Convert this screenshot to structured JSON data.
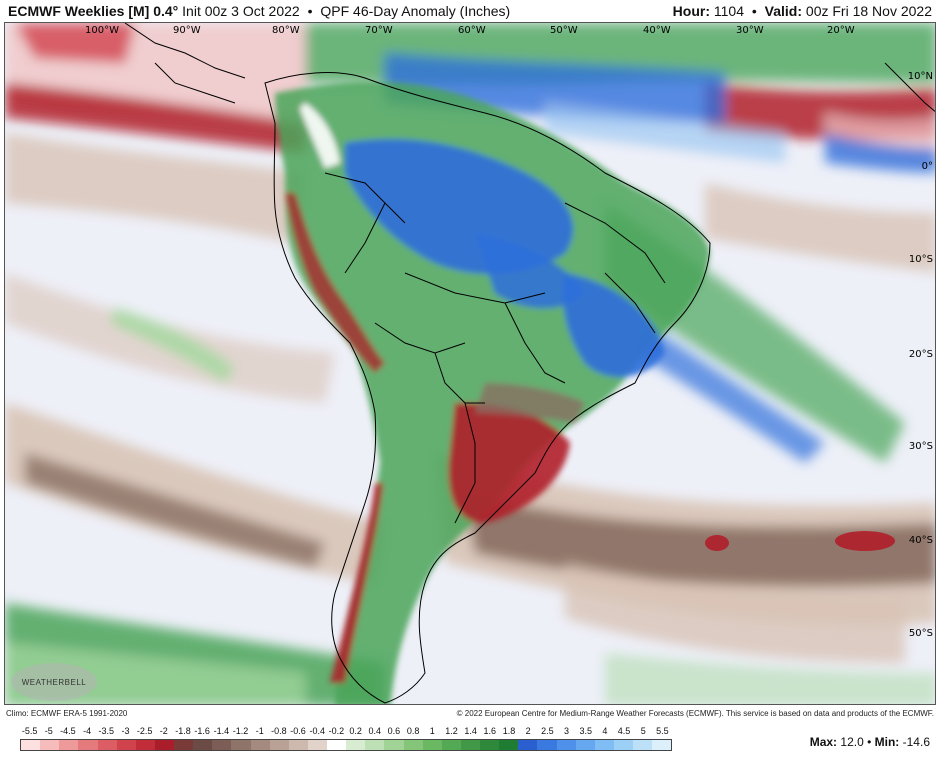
{
  "header": {
    "title_bold": "ECMWF Weeklies [M] 0.4°",
    "init": "Init 00z 3 Oct 2022",
    "product": "QPF 46-Day Anomaly (Inches)",
    "hour_label": "Hour:",
    "hour_value": "1104",
    "valid_label": "Valid:",
    "valid_value": "00z Fri 18 Nov 2022"
  },
  "map": {
    "lon_labels": [
      "100°W",
      "90°W",
      "80°W",
      "70°W",
      "60°W",
      "50°W",
      "40°W",
      "30°W",
      "20°W"
    ],
    "lat_labels": [
      "10°N",
      "0°",
      "10°S",
      "20°S",
      "30°S",
      "40°S",
      "50°S"
    ],
    "colors": {
      "red_dark": "#b01e2a",
      "red": "#d34b57",
      "pink": "#f0c4c4",
      "brown": "#8a6f63",
      "tan": "#d8c3b5",
      "green": "#4aa55a",
      "green_light": "#a6d8a0",
      "blue": "#2f6fdc",
      "blue_light": "#9ec8f2",
      "background": "#eef0f8"
    },
    "logo_text": "WEATHERBELL"
  },
  "footer": {
    "climo": "Climo: ECMWF ERA-5 1991-2020",
    "copyright": "© 2022 European Centre for Medium-Range Weather Forecasts (ECMWF). This service is based on data and products of the ECMWF."
  },
  "colorbar": {
    "labels": [
      "-5.5",
      "-5",
      "-4.5",
      "-4",
      "-3.5",
      "-3",
      "-2.5",
      "-2",
      "-1.8",
      "-1.6",
      "-1.4",
      "-1.2",
      "-1",
      "-0.8",
      "-0.6",
      "-0.4",
      "-0.2",
      "0.2",
      "0.4",
      "0.6",
      "0.8",
      "1",
      "1.2",
      "1.4",
      "1.6",
      "1.8",
      "2",
      "2.5",
      "3",
      "3.5",
      "4",
      "4.5",
      "5",
      "5.5"
    ],
    "swatches": [
      "#fde0e0",
      "#f6bcbc",
      "#ee9a9a",
      "#e57a7c",
      "#dc5d63",
      "#d0434c",
      "#c12e39",
      "#aa1e2b",
      "#7a3a37",
      "#6c4a45",
      "#7d5e56",
      "#8f746a",
      "#a48a7f",
      "#b9a196",
      "#cdb9ae",
      "#e2d3ca",
      "#ffffff",
      "#d8ecd2",
      "#bde0b4",
      "#a1d396",
      "#84c57a",
      "#6bb863",
      "#54a954",
      "#419947",
      "#2e8a3a",
      "#1f7c33",
      "#2a5fd0",
      "#3a7ae0",
      "#4f91ea",
      "#66a8f0",
      "#80bdf4",
      "#9dd0f6",
      "#bde0f9",
      "#dcf0fc"
    ],
    "max_label": "Max:",
    "max_value": "12.0",
    "min_label": "Min:",
    "min_value": "-14.6"
  }
}
